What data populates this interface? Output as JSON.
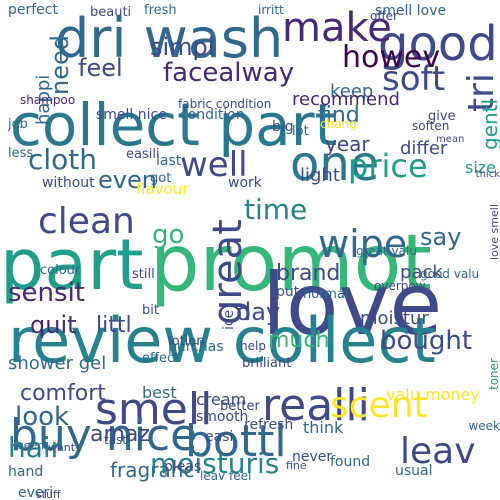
{
  "words": [
    {
      "text": "part",
      "color": "#1f9e89"
    },
    {
      "text": "promot",
      "color": "#35b779"
    },
    {
      "text": "love",
      "color": "#3e4a89"
    },
    {
      "text": "review collect",
      "color": "#26828e"
    },
    {
      "text": "collect part",
      "color": "#2a788e"
    },
    {
      "text": "dri wash",
      "color": "#31688e"
    },
    {
      "text": "good",
      "color": "#3e4a89"
    },
    {
      "text": "make",
      "color": "#482878"
    },
    {
      "text": "one",
      "color": "#2a788e"
    },
    {
      "text": "realli",
      "color": "#3e4a89"
    },
    {
      "text": "smell",
      "color": "#3e4a89"
    },
    {
      "text": "bottl",
      "color": "#31688e"
    },
    {
      "text": "buy nice",
      "color": "#31688e"
    },
    {
      "text": "scent",
      "color": "#fde725"
    },
    {
      "text": "great",
      "color": "#3e4a89"
    },
    {
      "text": "wipe",
      "color": "#31688e"
    },
    {
      "text": "clean",
      "color": "#3e4a89"
    },
    {
      "text": "well",
      "color": "#3e4a89"
    },
    {
      "text": "soft",
      "color": "#3e4a89"
    },
    {
      "text": "price",
      "color": "#1f9e89"
    },
    {
      "text": "bought",
      "color": "#3e4a89"
    },
    {
      "text": "moisturis",
      "color": "#26828e"
    },
    {
      "text": "leav",
      "color": "#3e4a89"
    },
    {
      "text": "facealway",
      "color": "#482878"
    },
    {
      "text": "sensit",
      "color": "#482878"
    },
    {
      "text": "time",
      "color": "#26828e"
    },
    {
      "text": "tri",
      "color": "#3e4a89"
    },
    {
      "text": "cloth",
      "color": "#31688e"
    },
    {
      "text": "even",
      "color": "#31688e"
    },
    {
      "text": "day",
      "color": "#3e4a89"
    },
    {
      "text": "say",
      "color": "#31688e"
    },
    {
      "text": "much",
      "color": "#35b779"
    },
    {
      "text": "look",
      "color": "#31688e"
    },
    {
      "text": "hair",
      "color": "#26828e"
    },
    {
      "text": "amaz",
      "color": "#3e4a89"
    },
    {
      "text": "feel",
      "color": "#3e4a89"
    },
    {
      "text": "need",
      "color": "#31688e"
    },
    {
      "text": "quit",
      "color": "#482878"
    },
    {
      "text": "littl",
      "color": "#3e4a89"
    },
    {
      "text": "go",
      "color": "#35b779"
    },
    {
      "text": "fragranc",
      "color": "#31688e"
    },
    {
      "text": "comfort",
      "color": "#3e4a89"
    },
    {
      "text": "brand",
      "color": "#3e4a89"
    },
    {
      "text": "howev",
      "color": "#440154"
    },
    {
      "text": "simpl",
      "color": "#3e4a89"
    },
    {
      "text": "find",
      "color": "#31688e"
    },
    {
      "text": "keep",
      "color": "#31688e"
    },
    {
      "text": "year",
      "color": "#3e4a89"
    },
    {
      "text": "gentl",
      "color": "#1f9e89"
    },
    {
      "text": "happi",
      "color": "#31688e"
    },
    {
      "text": "light",
      "color": "#3e4a89"
    },
    {
      "text": "recommend",
      "color": "#482878"
    },
    {
      "text": "condition",
      "color": "#31688e"
    },
    {
      "text": "smell nice",
      "color": "#3e4a89"
    },
    {
      "text": "flavour",
      "color": "#fde725"
    },
    {
      "text": "last",
      "color": "#31688e"
    },
    {
      "text": "differ",
      "color": "#3e4a89"
    },
    {
      "text": "without",
      "color": "#3e4a89"
    },
    {
      "text": "work",
      "color": "#3e4a89"
    },
    {
      "text": "pack",
      "color": "#3e4a89"
    },
    {
      "text": "moistur",
      "color": "#3e4a89"
    },
    {
      "text": "cream",
      "color": "#3e4a89"
    },
    {
      "text": "valu money",
      "color": "#fde725"
    },
    {
      "text": "refresh",
      "color": "#3e4a89"
    },
    {
      "text": "think",
      "color": "#31688e"
    },
    {
      "text": "never",
      "color": "#3e4a89"
    },
    {
      "text": "found",
      "color": "#31688e"
    },
    {
      "text": "usual",
      "color": "#31688e"
    },
    {
      "text": "shower gel",
      "color": "#31688e"
    },
    {
      "text": "purchas",
      "color": "#31688e"
    },
    {
      "text": "easi",
      "color": "#3e4a89"
    },
    {
      "text": "pleas",
      "color": "#3e4a89"
    },
    {
      "text": "best",
      "color": "#31688e"
    },
    {
      "text": "smooth",
      "color": "#3e4a89"
    },
    {
      "text": "everi",
      "color": "#31688e"
    },
    {
      "text": "hand",
      "color": "#31688e"
    },
    {
      "text": "lotion",
      "color": "#3e4a89"
    },
    {
      "text": "bit",
      "color": "#3e4a89"
    },
    {
      "text": "effect",
      "color": "#31688e"
    },
    {
      "text": "help",
      "color": "#3e4a89"
    },
    {
      "text": "put",
      "color": "#3e4a89"
    },
    {
      "text": "normal",
      "color": "#31688e"
    },
    {
      "text": "still",
      "color": "#3e4a89"
    },
    {
      "text": "job",
      "color": "#31688e"
    },
    {
      "text": "less",
      "color": "#31688e"
    },
    {
      "text": "got",
      "color": "#31688e"
    },
    {
      "text": "easili",
      "color": "#3e4a89"
    },
    {
      "text": "ice",
      "color": "#3e4a89"
    },
    {
      "text": "size",
      "color": "#1f9e89"
    },
    {
      "text": "great valu",
      "color": "#31688e"
    },
    {
      "text": "soften",
      "color": "#3e4a89"
    },
    {
      "text": "give",
      "color": "#3e4a89"
    },
    {
      "text": "colour",
      "color": "#31688e"
    },
    {
      "text": "lot",
      "color": "#31688e"
    },
    {
      "text": "big",
      "color": "#3e4a89"
    },
    {
      "text": "shampoo",
      "color": "#482878"
    },
    {
      "text": "perfect",
      "color": "#31688e"
    },
    {
      "text": "beauti",
      "color": "#3e4a89"
    },
    {
      "text": "fresh",
      "color": "#31688e"
    },
    {
      "text": "irritt",
      "color": "#31688e"
    },
    {
      "text": "smell love",
      "color": "#31688e"
    },
    {
      "text": "offer",
      "color": "#3e4a89"
    },
    {
      "text": "fabric condition",
      "color": "#3e4a89"
    },
    {
      "text": "chang",
      "color": "#fde725"
    },
    {
      "text": "toner",
      "color": "#1f9e89"
    },
    {
      "text": "tast",
      "color": "#3e4a89"
    },
    {
      "text": "better",
      "color": "#3e4a89"
    },
    {
      "text": "leav feel",
      "color": "#31688e"
    },
    {
      "text": "week",
      "color": "#31688e"
    },
    {
      "text": "love smell",
      "color": "#3e4a89"
    },
    {
      "text": "good valu",
      "color": "#31688e"
    },
    {
      "text": "overpow",
      "color": "#3e4a89"
    },
    {
      "text": "fine",
      "color": "#3e4a89"
    },
    {
      "text": "stuff",
      "color": "#3e4a89"
    },
    {
      "text": "brilliant",
      "color": "#3e4a89"
    },
    {
      "text": "seem",
      "color": "#31688e"
    },
    {
      "text": "want",
      "color": "#3e4a89"
    },
    {
      "text": "thick",
      "color": "#3e4a89"
    },
    {
      "text": "mean",
      "color": "#3e4a89"
    },
    {
      "text": "face wash",
      "color": "#3e4a89"
    }
  ]
}
